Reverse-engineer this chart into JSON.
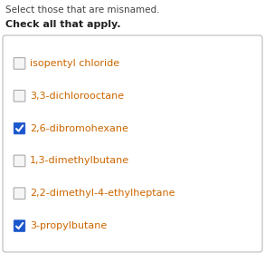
{
  "title_line1": "Select those that are misnamed.",
  "title_line2": "Check all that apply.",
  "items": [
    {
      "label": "isopentyl chloride",
      "checked": false
    },
    {
      "label": "3,3-dichlorooctane",
      "checked": false
    },
    {
      "label": "2,6-dibromohexane",
      "checked": true
    },
    {
      "label": "1,3-dimethylbutane",
      "checked": false
    },
    {
      "label": "2,2-dimethyl-4-ethylheptane",
      "checked": false
    },
    {
      "label": "3-propylbutane",
      "checked": true
    }
  ],
  "bg_color": "#ffffff",
  "box_bg": "#ffffff",
  "box_border": "#bbbbbb",
  "title1_color": "#444444",
  "title2_color": "#222222",
  "label_color": "#cc6600",
  "checked_box_color": "#1a56cc",
  "unchecked_box_border": "#aaaaaa",
  "unchecked_box_bg": "#f5f5f5",
  "check_color": "#ffffff",
  "font_size_title1": 7.5,
  "font_size_title2": 8.0,
  "font_size_label": 8.0,
  "fig_w": 2.93,
  "fig_h": 2.79,
  "dpi": 100
}
